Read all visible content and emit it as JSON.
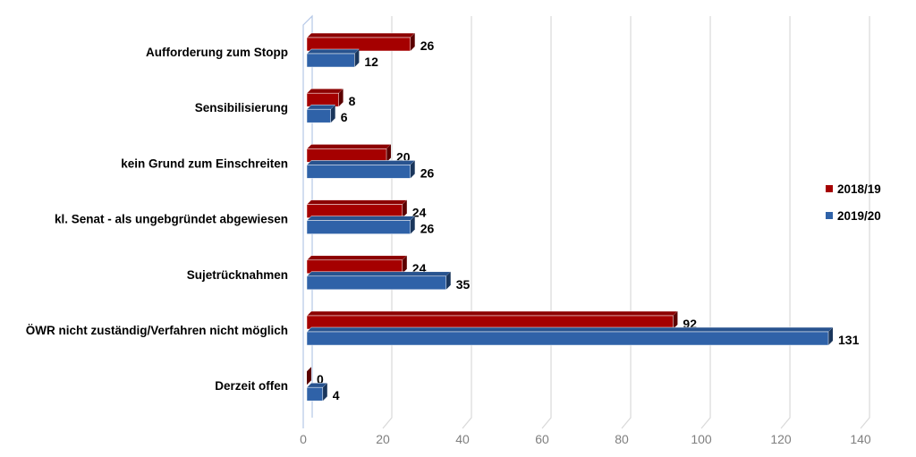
{
  "chart_data": {
    "type": "bar",
    "orientation": "horizontal",
    "style": "3d-clustered",
    "categories": [
      "Aufforderung zum Stopp",
      "Sensibilisierung",
      "kein Grund zum Einschreiten",
      "kl. Senat - als ungebgründet abgewiesen",
      "Sujetrücknahmen",
      "ÖWR nicht zuständig/Verfahren nicht möglich",
      "Derzeit offen"
    ],
    "series": [
      {
        "name": "2018/19",
        "color": "#a50000",
        "values": [
          26,
          8,
          20,
          24,
          24,
          92,
          0
        ]
      },
      {
        "name": "2019/20",
        "color": "#2f62a8",
        "values": [
          12,
          6,
          26,
          26,
          35,
          131,
          4
        ]
      }
    ],
    "xlim": [
      0,
      140
    ],
    "xticks": [
      0,
      20,
      40,
      60,
      80,
      100,
      120,
      140
    ],
    "grid": true,
    "legend": "right",
    "title": "",
    "xlabel": "",
    "ylabel": ""
  }
}
